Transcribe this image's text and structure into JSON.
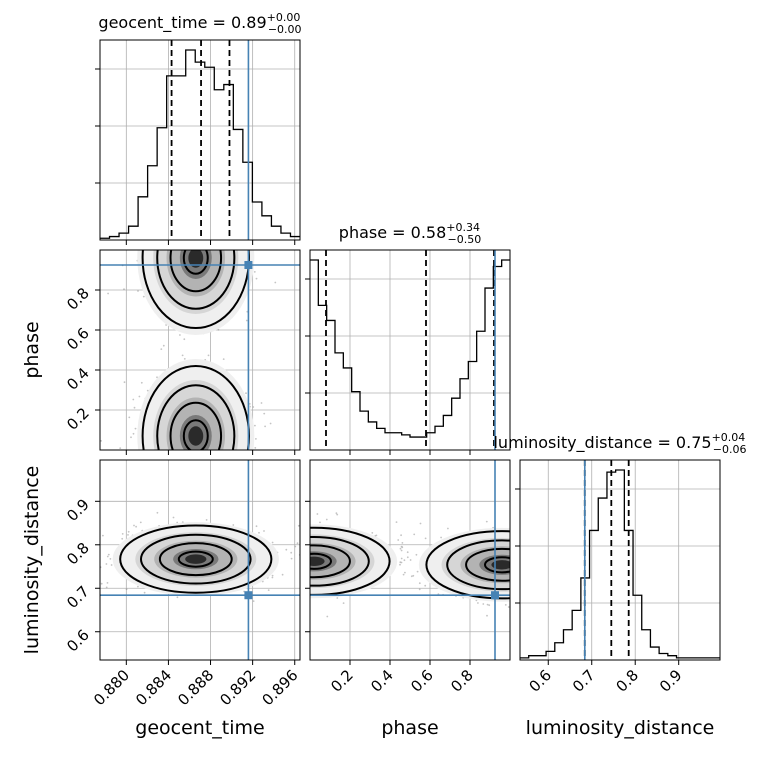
{
  "chart_data": {
    "type": "corner",
    "parameters": [
      {
        "name": "geocent_time",
        "median": "0.89",
        "plus": "+0.00",
        "minus": "−0.00",
        "truth": 0.8916,
        "quantiles": [
          0.8843,
          0.8871,
          0.8898
        ],
        "range": [
          0.8775,
          0.8965
        ],
        "ticks": [
          0.88,
          0.884,
          0.888,
          0.892,
          0.896
        ],
        "tick_labels": [
          "0.880",
          "0.884",
          "0.888",
          "0.892",
          "0.896"
        ]
      },
      {
        "name": "phase",
        "median": "0.58",
        "plus": "+0.34",
        "minus": "−0.50",
        "truth": 0.925,
        "quantiles": [
          0.08,
          0.58,
          0.92
        ],
        "range": [
          0.0,
          1.0
        ],
        "ticks": [
          0.2,
          0.4,
          0.6,
          0.8
        ],
        "tick_labels": [
          "0.2",
          "0.4",
          "0.6",
          "0.8"
        ]
      },
      {
        "name": "luminosity_distance",
        "median": "0.75",
        "plus": "+0.04",
        "minus": "−0.06",
        "truth": 0.684,
        "quantiles": [
          0.684,
          0.745,
          0.785
        ],
        "range": [
          0.535,
          0.995
        ],
        "ticks": [
          0.6,
          0.7,
          0.8,
          0.9
        ],
        "tick_labels": [
          "0.6",
          "0.7",
          "0.8",
          "0.9"
        ]
      }
    ],
    "histograms": {
      "geocent_time": {
        "edges_from": 0.8775,
        "edges_to": 0.8965,
        "counts": [
          1,
          2,
          4,
          8,
          25,
          43,
          65,
          95,
          95,
          110,
          103,
          100,
          87,
          90,
          64,
          45,
          22,
          14,
          8,
          4,
          2
        ]
      },
      "phase": {
        "edges_from": 0.0,
        "edges_to": 1.0,
        "counts": [
          88,
          67,
          60,
          45,
          38,
          27,
          18,
          13,
          10,
          8,
          8,
          7,
          6,
          6,
          8,
          11,
          16,
          24,
          33,
          41,
          55,
          75,
          85,
          88
        ]
      },
      "luminosity_distance": {
        "edges_from": 0.535,
        "edges_to": 0.995,
        "counts": [
          1,
          2,
          2,
          4,
          8,
          14,
          23,
          38,
          60,
          75,
          87,
          88,
          60,
          30,
          14,
          6,
          3,
          2,
          1,
          1,
          1,
          1,
          1
        ]
      }
    },
    "pair_modes": {
      "phase_vs_geocent_time": [
        {
          "x": 0.8866,
          "y": 0.96
        },
        {
          "x": 0.8866,
          "y": 0.07
        }
      ],
      "luminosity_distance_vs_geocent_time": [
        {
          "x": 0.8866,
          "y": 0.767
        }
      ],
      "luminosity_distance_vs_phase": [
        {
          "x": 0.02,
          "y": 0.762
        },
        {
          "x": 0.96,
          "y": 0.754
        }
      ]
    },
    "truth_color": "#4682b4",
    "grid": true
  }
}
